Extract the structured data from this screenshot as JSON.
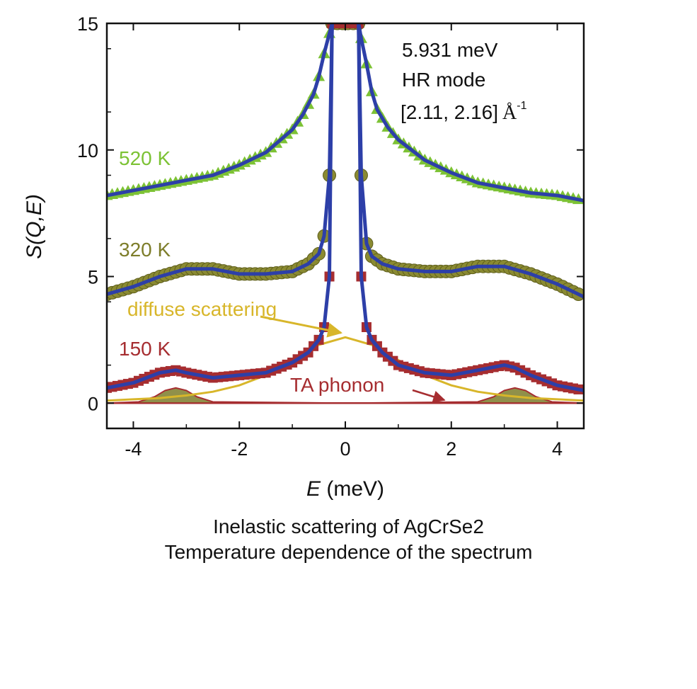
{
  "chart_data": {
    "type": "scatter",
    "xlabel": "E (meV)",
    "ylabel": "S(Q,E)",
    "xlim": [
      -4.5,
      4.5
    ],
    "ylim": [
      -1,
      15
    ],
    "xticks": [
      -4,
      -2,
      0,
      2,
      4
    ],
    "yticks": [
      0,
      5,
      10,
      15
    ],
    "grid": false,
    "annotations": {
      "energy": "5.931 meV",
      "mode": "HR mode",
      "q_range": "[2.11, 2.16]",
      "q_unit": "Å",
      "q_unit_exp": "-1"
    },
    "series": [
      {
        "name": "520 K",
        "color": "#7cc234",
        "marker": "triangle",
        "fit_color": "#2d3fa8",
        "x": [
          -4.5,
          -4.0,
          -3.5,
          -3.0,
          -2.5,
          -2.0,
          -1.5,
          -1.0,
          -0.8,
          -0.6,
          -0.5,
          -0.4,
          -0.3,
          -0.25,
          0.25,
          0.3,
          0.4,
          0.5,
          0.6,
          0.8,
          1.0,
          1.5,
          2.0,
          2.5,
          3.0,
          3.5,
          4.0,
          4.5
        ],
        "y": [
          8.2,
          8.4,
          8.6,
          8.8,
          9.0,
          9.4,
          9.9,
          10.8,
          11.4,
          12.2,
          12.9,
          13.8,
          14.6,
          15.0,
          15.0,
          14.4,
          13.4,
          12.3,
          11.6,
          10.9,
          10.4,
          9.6,
          9.1,
          8.7,
          8.5,
          8.3,
          8.2,
          8.0
        ]
      },
      {
        "name": "320 K",
        "color": "#8a8a32",
        "marker": "circle",
        "fit_color": "#2d3fa8",
        "x": [
          -4.5,
          -4.0,
          -3.5,
          -3.0,
          -2.5,
          -2.0,
          -1.5,
          -1.0,
          -0.7,
          -0.5,
          -0.4,
          -0.3,
          -0.25,
          0.25,
          0.3,
          0.4,
          0.5,
          0.7,
          1.0,
          1.5,
          2.0,
          2.5,
          3.0,
          3.5,
          4.0,
          4.5
        ],
        "y": [
          4.3,
          4.6,
          5.0,
          5.3,
          5.3,
          5.1,
          5.1,
          5.2,
          5.5,
          5.9,
          6.6,
          9.0,
          15.0,
          15.0,
          9.0,
          6.3,
          5.8,
          5.5,
          5.3,
          5.2,
          5.2,
          5.4,
          5.4,
          5.1,
          4.7,
          4.2
        ]
      },
      {
        "name": "150 K",
        "color": "#a62d30",
        "marker": "square",
        "fit_color": "#2d3fa8",
        "x": [
          -4.5,
          -4.0,
          -3.5,
          -3.2,
          -3.0,
          -2.5,
          -2.0,
          -1.5,
          -1.0,
          -0.7,
          -0.5,
          -0.4,
          -0.3,
          -0.25,
          0.25,
          0.3,
          0.4,
          0.5,
          0.7,
          1.0,
          1.5,
          2.0,
          2.5,
          3.0,
          3.2,
          3.5,
          4.0,
          4.5
        ],
        "y": [
          0.6,
          0.8,
          1.2,
          1.3,
          1.2,
          1.0,
          1.1,
          1.2,
          1.6,
          2.0,
          2.5,
          3.0,
          5.0,
          15.0,
          15.0,
          5.0,
          3.0,
          2.5,
          2.0,
          1.5,
          1.2,
          1.1,
          1.3,
          1.5,
          1.4,
          1.1,
          0.7,
          0.5
        ]
      }
    ],
    "components": [
      {
        "name": "diffuse scattering",
        "color": "#d8b62a",
        "x": [
          -4.5,
          -4.0,
          -3.5,
          -3.0,
          -2.5,
          -2.0,
          -1.5,
          -1.0,
          -0.5,
          0.0,
          0.5,
          1.0,
          1.5,
          2.0,
          2.5,
          3.0,
          3.5,
          4.0,
          4.5
        ],
        "y": [
          0.1,
          0.15,
          0.2,
          0.3,
          0.45,
          0.7,
          1.1,
          1.7,
          2.3,
          2.6,
          2.3,
          1.7,
          1.1,
          0.7,
          0.45,
          0.3,
          0.2,
          0.15,
          0.1
        ]
      },
      {
        "name": "TA phonon",
        "color": "#a62d30",
        "fill": "#7d7d2a",
        "x": [
          -4.5,
          -3.9,
          -3.6,
          -3.4,
          -3.2,
          -3.0,
          -2.8,
          -2.5,
          0.0,
          2.5,
          2.8,
          3.0,
          3.2,
          3.4,
          3.6,
          3.9,
          4.5
        ],
        "y": [
          0.0,
          0.05,
          0.25,
          0.5,
          0.6,
          0.5,
          0.25,
          0.05,
          0.0,
          0.05,
          0.25,
          0.5,
          0.6,
          0.5,
          0.25,
          0.05,
          0.0
        ]
      }
    ],
    "captions": [
      "Inelastic scattering of AgCrSe2",
      "Temperature dependence of the spectrum"
    ]
  }
}
